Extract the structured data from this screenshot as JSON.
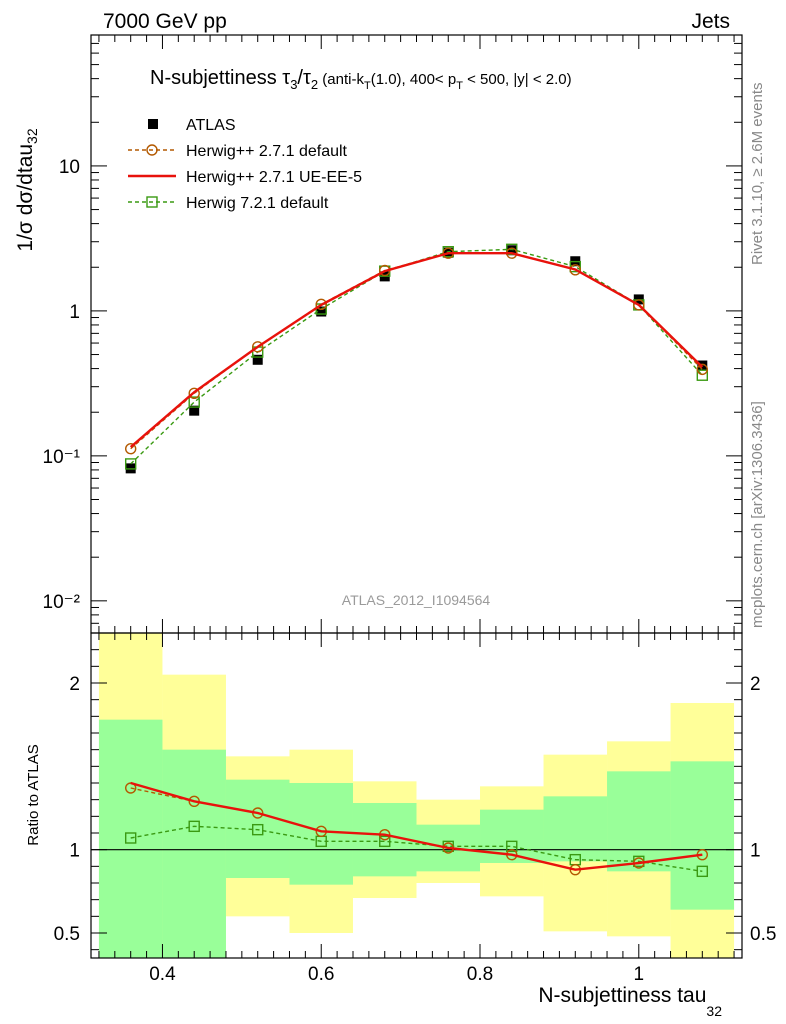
{
  "header": {
    "left": "7000 GeV pp",
    "right": "Jets"
  },
  "side_labels": {
    "rivet": "Rivet 3.1.10, ≥ 2.6M events",
    "mcplots": "mcplots.cern.ch [arXiv:1306.3436]"
  },
  "watermark": "ATLAS_2012_I1094564",
  "chart_data": [
    {
      "type": "scatter",
      "panel": "main",
      "title": "N-subjettiness τ₃/τ₂ (anti-k_T(1.0), 400< p_T < 500, |y| < 2.0)",
      "ylabel": "1/σ dσ/dtau₃₂",
      "yscale": "log",
      "xlim": [
        0.31,
        1.13
      ],
      "ylim": [
        0.006,
        80
      ],
      "yticks": [
        "10⁻²",
        "10⁻¹",
        "1",
        "10"
      ],
      "legend_placement": "top-left",
      "x": [
        0.36,
        0.44,
        0.52,
        0.6,
        0.68,
        0.76,
        0.84,
        0.92,
        1.0,
        1.08
      ],
      "series": [
        {
          "name": "ATLAS",
          "marker": "filled-square",
          "color": "#000000",
          "values": [
            0.082,
            0.205,
            0.46,
            0.99,
            1.73,
            2.52,
            2.62,
            2.2,
            1.2,
            0.42
          ]
        },
        {
          "name": "Herwig++ 2.7.1 default",
          "marker": "open-circle",
          "line": "dashed",
          "color": "#b35900",
          "values": [
            0.112,
            0.27,
            0.565,
            1.11,
            1.9,
            2.5,
            2.5,
            1.92,
            1.1,
            0.395
          ]
        },
        {
          "name": "Herwig++ 2.7.1 UE-EE-5",
          "marker": "none",
          "line": "solid",
          "color": "#e8120c",
          "values": [
            0.115,
            0.275,
            0.565,
            1.1,
            1.88,
            2.5,
            2.5,
            1.93,
            1.1,
            0.41
          ]
        },
        {
          "name": "Herwig 7.2.1 default",
          "marker": "open-square",
          "line": "dashed",
          "color": "#3a9a12",
          "values": [
            0.088,
            0.235,
            0.52,
            1.03,
            1.88,
            2.56,
            2.66,
            2.02,
            1.1,
            0.36
          ]
        }
      ]
    },
    {
      "type": "line",
      "panel": "ratio",
      "ylabel": "Ratio to ATLAS",
      "xlabel": "N-subjettiness tau₃₂",
      "xlim": [
        0.31,
        1.13
      ],
      "ylim": [
        0.35,
        2.3
      ],
      "xticks": [
        "0.4",
        "0.6",
        "0.8",
        "1"
      ],
      "yticks": [
        "0.5",
        "1",
        "2"
      ],
      "bands": {
        "edges": [
          0.32,
          0.4,
          0.48,
          0.56,
          0.64,
          0.72,
          0.8,
          0.88,
          0.96,
          1.04,
          1.12
        ],
        "green": {
          "color": "#99ff99",
          "low": [
            0.35,
            0.35,
            0.83,
            0.79,
            0.84,
            0.87,
            0.92,
            0.93,
            0.87,
            0.64
          ],
          "high": [
            1.78,
            1.6,
            1.42,
            1.4,
            1.28,
            1.15,
            1.24,
            1.32,
            1.47,
            1.53
          ]
        },
        "yellow": {
          "color": "#ffff99",
          "low": [
            0.35,
            0.35,
            0.6,
            0.5,
            0.71,
            0.8,
            0.72,
            0.51,
            0.48,
            0.35
          ],
          "high": [
            2.3,
            2.05,
            1.56,
            1.6,
            1.41,
            1.3,
            1.38,
            1.57,
            1.65,
            1.88
          ]
        }
      },
      "x": [
        0.36,
        0.44,
        0.52,
        0.6,
        0.68,
        0.76,
        0.84,
        0.92,
        1.0,
        1.08
      ],
      "series": [
        {
          "name": "Herwig++ 2.7.1 default",
          "marker": "open-circle",
          "line": "dashed",
          "color": "#b35900",
          "values": [
            1.37,
            1.29,
            1.22,
            1.11,
            1.09,
            1.01,
            0.97,
            0.88,
            0.92,
            0.97
          ]
        },
        {
          "name": "Herwig++ 2.7.1 UE-EE-5",
          "marker": "none",
          "line": "solid",
          "color": "#e8120c",
          "values": [
            1.4,
            1.29,
            1.22,
            1.11,
            1.09,
            1.01,
            0.97,
            0.88,
            0.92,
            0.97
          ]
        },
        {
          "name": "Herwig 7.2.1 default",
          "marker": "open-square",
          "line": "dashed",
          "color": "#3a9a12",
          "values": [
            1.07,
            1.14,
            1.12,
            1.05,
            1.05,
            1.02,
            1.02,
            0.94,
            0.93,
            0.87
          ]
        }
      ]
    }
  ]
}
